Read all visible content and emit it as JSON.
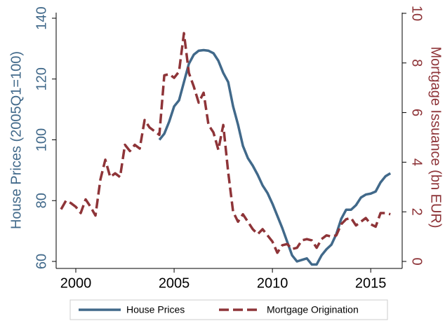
{
  "chart_data": {
    "type": "line",
    "ylabel": "House Prices (2005Q1=100)",
    "y2label": "Mortgage Issuance (bn EUR)",
    "xlim": [
      1999,
      2016.6
    ],
    "xticks": [
      2000,
      2005,
      2010,
      2015
    ],
    "ylim": [
      60,
      140
    ],
    "yticks": [
      60,
      80,
      100,
      120,
      140
    ],
    "y2lim": [
      0,
      10
    ],
    "y2ticks": [
      0,
      2,
      4,
      6,
      8,
      10
    ],
    "legend": "bottom",
    "series": [
      {
        "name": "House Prices",
        "color": "#41698a",
        "axis": "y",
        "dash": "solid",
        "x": [
          2004.25,
          2004.5,
          2004.75,
          2005,
          2005.25,
          2005.5,
          2005.75,
          2006,
          2006.25,
          2006.5,
          2006.75,
          2007,
          2007.25,
          2007.5,
          2007.75,
          2008,
          2008.25,
          2008.5,
          2008.75,
          2009,
          2009.25,
          2009.5,
          2009.75,
          2010,
          2010.25,
          2010.5,
          2010.75,
          2011,
          2011.25,
          2011.5,
          2011.75,
          2012,
          2012.25,
          2012.5,
          2012.75,
          2013,
          2013.25,
          2013.5,
          2013.75,
          2014,
          2014.25,
          2014.5,
          2014.75,
          2015,
          2015.25,
          2015.5,
          2015.75,
          2016
        ],
        "values": [
          100,
          102,
          106,
          111,
          113,
          119,
          125,
          128,
          129.3,
          129.5,
          129.3,
          128.5,
          126,
          122,
          119,
          111,
          105,
          98,
          94,
          91.5,
          88.5,
          85,
          82.5,
          79,
          75,
          71,
          66.5,
          62,
          60,
          60.5,
          61,
          59,
          59,
          62,
          64,
          65.5,
          69,
          74,
          77,
          77,
          78.5,
          81,
          82,
          82.3,
          83,
          86,
          88,
          89
        ]
      },
      {
        "name": "Mortgage Origination",
        "color": "#8e3438",
        "axis": "y2",
        "dash": "dashed",
        "x": [
          1999.25,
          1999.5,
          1999.75,
          2000,
          2000.25,
          2000.5,
          2000.75,
          2001,
          2001.25,
          2001.5,
          2001.75,
          2002,
          2002.25,
          2002.5,
          2002.75,
          2003,
          2003.25,
          2003.5,
          2003.75,
          2004,
          2004.25,
          2004.5,
          2004.75,
          2005,
          2005.25,
          2005.5,
          2005.75,
          2006,
          2006.25,
          2006.5,
          2006.75,
          2007,
          2007.25,
          2007.5,
          2007.75,
          2008,
          2008.25,
          2008.5,
          2008.75,
          2009,
          2009.25,
          2009.5,
          2009.75,
          2010,
          2010.25,
          2010.5,
          2010.75,
          2011,
          2011.25,
          2011.5,
          2011.75,
          2012,
          2012.25,
          2012.5,
          2012.75,
          2013,
          2013.25,
          2013.5,
          2013.75,
          2014,
          2014.25,
          2014.5,
          2014.75,
          2015,
          2015.25,
          2015.5,
          2015.75,
          2016
        ],
        "values": [
          2.1,
          2.45,
          2.35,
          2.2,
          1.95,
          2.5,
          2.2,
          1.85,
          3.3,
          4.1,
          3.4,
          3.55,
          3.4,
          4.7,
          4.45,
          4.7,
          4.55,
          5.7,
          5.4,
          5.25,
          5.1,
          7.5,
          7.55,
          7.4,
          7.65,
          9.2,
          7.6,
          7.05,
          6.4,
          6.8,
          5.5,
          5.2,
          4.5,
          5.5,
          3.6,
          2.0,
          1.6,
          1.9,
          1.6,
          1.3,
          1.1,
          1.3,
          1.05,
          0.8,
          0.35,
          0.65,
          0.7,
          0.5,
          0.55,
          0.85,
          0.9,
          0.85,
          0.55,
          0.9,
          1.05,
          1.0,
          1.05,
          1.5,
          1.7,
          1.75,
          1.45,
          1.6,
          1.75,
          1.5,
          1.4,
          1.95,
          1.95,
          1.9
        ]
      }
    ]
  }
}
